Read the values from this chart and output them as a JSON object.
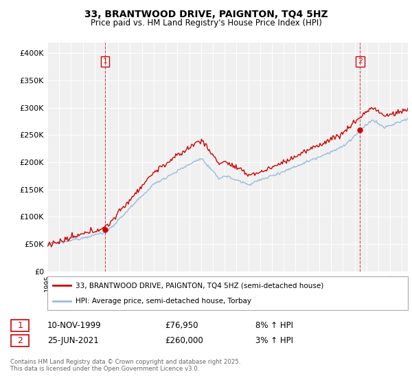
{
  "title": "33, BRANTWOOD DRIVE, PAIGNTON, TQ4 5HZ",
  "subtitle": "Price paid vs. HM Land Registry's House Price Index (HPI)",
  "legend_line1": "33, BRANTWOOD DRIVE, PAIGNTON, TQ4 5HZ (semi-detached house)",
  "legend_line2": "HPI: Average price, semi-detached house, Torbay",
  "footnote": "Contains HM Land Registry data © Crown copyright and database right 2025.\nThis data is licensed under the Open Government Licence v3.0.",
  "transaction1_date": "10-NOV-1999",
  "transaction1_price": "£76,950",
  "transaction1_hpi": "8% ↑ HPI",
  "transaction1_year": 1999.875,
  "transaction1_value": 76950,
  "transaction2_date": "25-JUN-2021",
  "transaction2_price": "£260,000",
  "transaction2_hpi": "3% ↑ HPI",
  "transaction2_year": 2021.458,
  "transaction2_value": 260000,
  "sale_color": "#cc0000",
  "hpi_color": "#99bbdd",
  "ylim": [
    0,
    420000
  ],
  "yticks": [
    0,
    50000,
    100000,
    150000,
    200000,
    250000,
    300000,
    350000,
    400000
  ],
  "xlim_start": 1995,
  "xlim_end": 2025.5,
  "bg_color": "#f0f0f0"
}
